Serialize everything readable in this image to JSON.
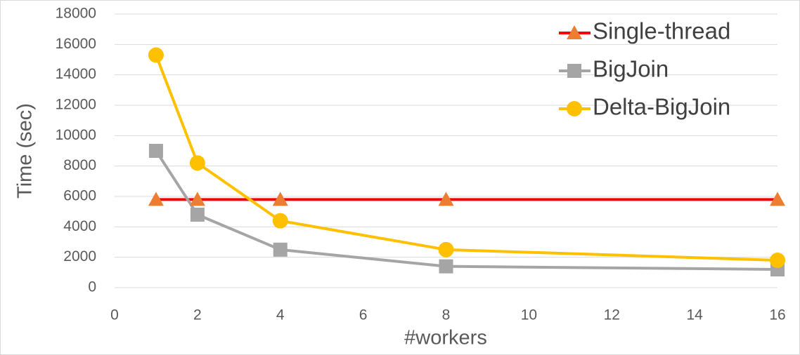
{
  "chart_data": {
    "type": "line",
    "x_label": "#workers",
    "y_label": "Time (sec)",
    "x": [
      1,
      2,
      4,
      8,
      16
    ],
    "series": [
      {
        "name": "Single-thread",
        "color": "#ff0000",
        "marker": "triangle",
        "marker_color": "#ed7d31",
        "values": [
          5800,
          5800,
          5800,
          5800,
          5800
        ]
      },
      {
        "name": "BigJoin",
        "color": "#a5a5a5",
        "marker": "square",
        "marker_color": "#a5a5a5",
        "values": [
          9000,
          4800,
          2500,
          1400,
          1200
        ]
      },
      {
        "name": "Delta-BigJoin",
        "color": "#ffc000",
        "marker": "circle",
        "marker_color": "#ffc000",
        "values": [
          15300,
          8200,
          4400,
          2500,
          1800
        ]
      }
    ],
    "xlim": [
      0,
      16
    ],
    "xticks": [
      0,
      2,
      4,
      6,
      8,
      10,
      12,
      14,
      16
    ],
    "ylim": [
      0,
      18000
    ],
    "yticks": [
      0,
      2000,
      4000,
      6000,
      8000,
      10000,
      12000,
      14000,
      16000,
      18000
    ],
    "grid": true,
    "legend_position": "upper-right"
  }
}
